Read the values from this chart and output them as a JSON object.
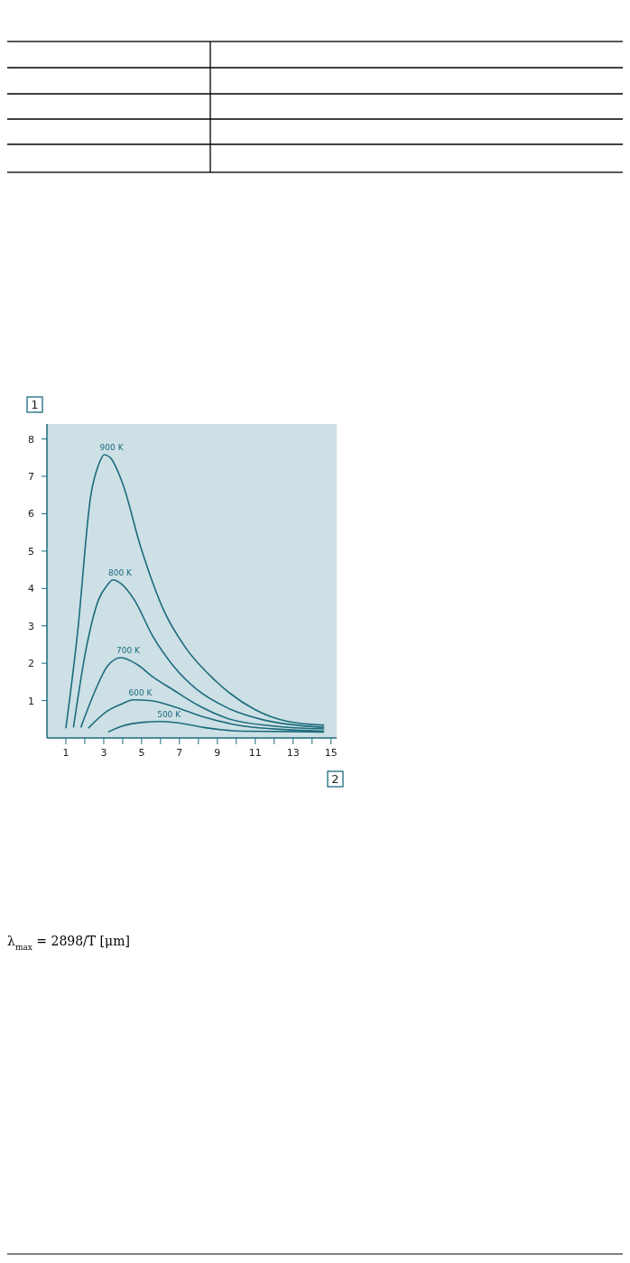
{
  "chart_data": {
    "type": "line",
    "xlabel": "2",
    "ylabel": "1",
    "xlim": [
      0,
      15.3
    ],
    "ylim": [
      0,
      8.4
    ],
    "xticks": [
      1,
      {
        "value": 2,
        "label": null
      },
      3,
      {
        "value": 4,
        "label": null
      },
      5,
      {
        "value": 6,
        "label": null
      },
      7,
      {
        "value": 8,
        "label": null
      },
      9,
      {
        "value": 10,
        "label": null
      },
      11,
      {
        "value": 12,
        "label": null
      },
      13,
      {
        "value": 14,
        "label": null
      },
      15
    ],
    "yticks": [
      1,
      2,
      3,
      4,
      5,
      6,
      7,
      8
    ],
    "grid": false,
    "annotations": [
      "λ$_{max}$ = 2898/T [μm]"
    ],
    "series": [
      {
        "name": "900  K",
        "color": "#1b6b7d",
        "x": [
          1.0,
          1.6,
          2.32,
          2.72,
          3.03,
          3.35,
          3.99,
          4.94,
          6.21,
          7.33,
          8.92,
          10.98,
          12.73,
          14.64
        ],
        "values": [
          0.26,
          2.73,
          6.5,
          7.3,
          7.58,
          7.5,
          6.82,
          5.13,
          3.37,
          2.41,
          1.52,
          0.76,
          0.44,
          0.34
        ]
      },
      {
        "name": "800 K",
        "color": "#1b6b7d",
        "x": [
          1.4,
          2.08,
          2.72,
          3.19,
          3.48,
          3.91,
          4.62,
          5.58,
          6.69,
          7.96,
          9.55,
          11.46,
          14.64
        ],
        "values": [
          0.28,
          2.41,
          3.69,
          4.09,
          4.23,
          4.13,
          3.69,
          2.73,
          1.92,
          1.28,
          0.8,
          0.48,
          0.28
        ]
      },
      {
        "name": "700 K",
        "color": "#1b6b7d",
        "x": [
          1.79,
          2.56,
          3.19,
          3.91,
          4.78,
          5.58,
          6.69,
          7.96,
          9.55,
          11.94,
          14.64
        ],
        "values": [
          0.28,
          1.28,
          1.92,
          2.15,
          1.96,
          1.64,
          1.28,
          0.88,
          0.52,
          0.32,
          0.24
        ]
      },
      {
        "name": "600 K",
        "color": "#1b6b7d",
        "x": [
          2.18,
          3.19,
          3.99,
          4.55,
          5.42,
          6.69,
          8.28,
          10.35,
          12.73,
          14.64
        ],
        "values": [
          0.26,
          0.72,
          0.92,
          1.02,
          1.0,
          0.84,
          0.56,
          0.32,
          0.22,
          0.18
        ]
      },
      {
        "name": "500 K",
        "color": "#1b6b7d",
        "x": [
          3.23,
          3.99,
          5.1,
          6.06,
          7.01,
          8.28,
          10.35,
          14.64
        ],
        "values": [
          0.16,
          0.32,
          0.42,
          0.44,
          0.4,
          0.28,
          0.18,
          0.16
        ]
      }
    ]
  }
}
